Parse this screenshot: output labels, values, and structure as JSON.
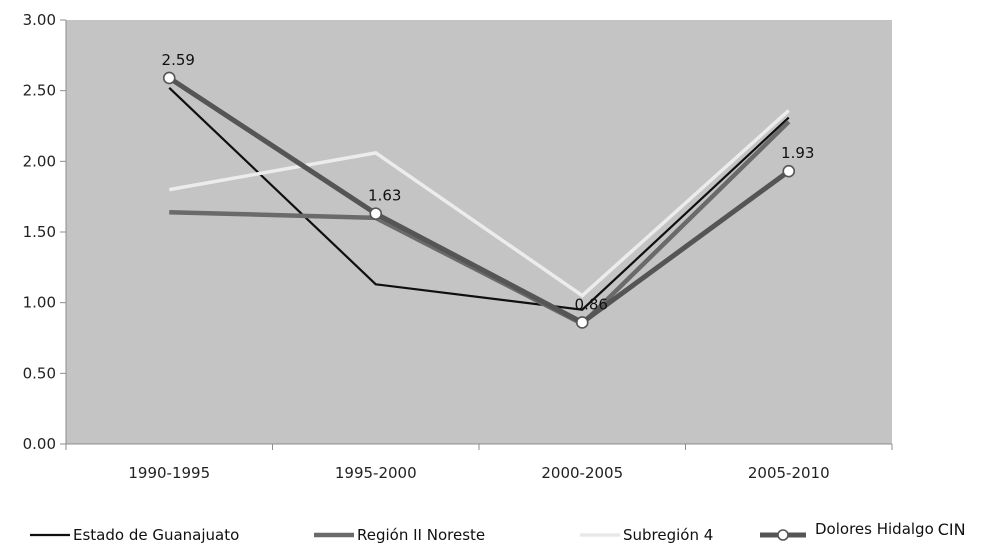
{
  "chart_data": {
    "type": "line",
    "title": "",
    "xlabel": "",
    "ylabel": "",
    "categories": [
      "1990-1995",
      "1995-2000",
      "2000-2005",
      "2005-2010"
    ],
    "ylim": [
      0,
      3
    ],
    "yticks": [
      "0.00",
      "0.50",
      "1.00",
      "1.50",
      "2.00",
      "2.50",
      "3.00"
    ],
    "grid": false,
    "legend_position": "bottom",
    "plot_background": "#c4c4c4",
    "series": [
      {
        "name": "Estado de Guanajuato",
        "values": [
          2.52,
          1.13,
          0.95,
          2.31
        ],
        "color": "#0f0f0f",
        "width": 2.2
      },
      {
        "name": "Región II Noreste",
        "values": [
          1.64,
          1.6,
          0.85,
          2.28
        ],
        "color": "#6a6a6a",
        "width": 4.5
      },
      {
        "name": "Subregión 4",
        "values": [
          1.8,
          2.06,
          1.05,
          2.36
        ],
        "color": "#ececec",
        "width": 3.5
      },
      {
        "name": "Dolores Hidalgo",
        "values": [
          2.59,
          1.63,
          0.86,
          1.93
        ],
        "color": "#555555",
        "width": 5,
        "markers": true,
        "data_labels": [
          "2.59",
          "1.63",
          "0.86",
          "1.93"
        ]
      }
    ],
    "legend_tail_text": "CIN"
  }
}
